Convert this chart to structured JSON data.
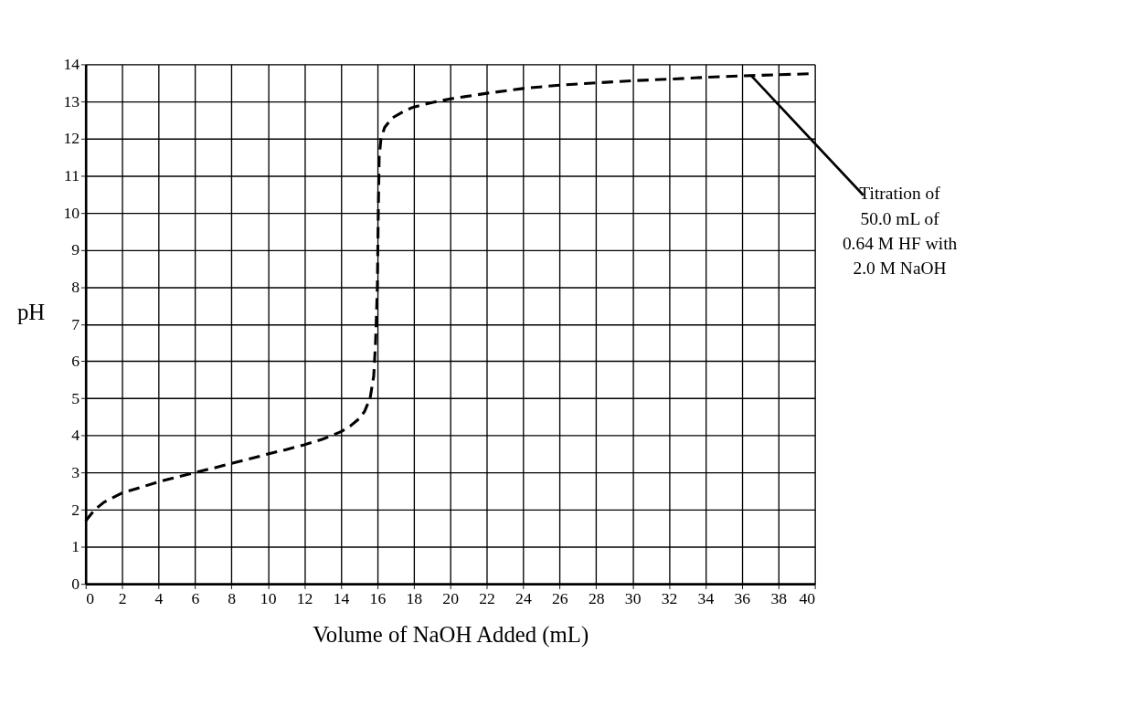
{
  "chart_data": {
    "type": "line",
    "xlabel": "Volume of NaOH Added (mL)",
    "ylabel": "pH",
    "x": [
      0,
      0.5,
      1,
      2,
      3,
      4,
      5,
      6,
      7,
      8,
      9,
      10,
      11,
      12,
      13,
      14,
      14.5,
      15,
      15.3,
      15.6,
      15.8,
      15.9,
      16,
      16.05,
      16.1,
      16.2,
      16.4,
      16.8,
      17.5,
      18,
      19,
      20,
      22,
      24,
      26,
      28,
      30,
      32,
      34,
      36,
      38,
      40
    ],
    "series": [
      {
        "color": "#000000",
        "values": [
          1.7,
          2.0,
          2.2,
          2.45,
          2.6,
          2.75,
          2.88,
          3.0,
          3.12,
          3.25,
          3.37,
          3.5,
          3.62,
          3.75,
          3.9,
          4.1,
          4.25,
          4.45,
          4.65,
          5.0,
          5.6,
          6.5,
          8.0,
          10.0,
          11.5,
          12.0,
          12.3,
          12.55,
          12.75,
          12.85,
          12.97,
          13.07,
          13.22,
          13.35,
          13.44,
          13.5,
          13.56,
          13.6,
          13.65,
          13.69,
          13.72,
          13.75
        ]
      }
    ],
    "xlim": [
      0,
      40
    ],
    "ylim": [
      0,
      14
    ],
    "xticks": [
      0,
      2,
      4,
      6,
      8,
      10,
      12,
      14,
      16,
      18,
      20,
      22,
      24,
      26,
      28,
      30,
      32,
      34,
      36,
      38,
      40
    ],
    "yticks": [
      0,
      1,
      2,
      3,
      4,
      5,
      6,
      7,
      8,
      9,
      10,
      11,
      12,
      13,
      14
    ],
    "grid": true,
    "line_style": "dashed",
    "marker": "none",
    "annotations": [
      {
        "text": "Titration of\n50.0 mL of\n0.64 M HF with\n2.0 M NaOH",
        "x": 36.5,
        "y": 13.7
      }
    ]
  }
}
